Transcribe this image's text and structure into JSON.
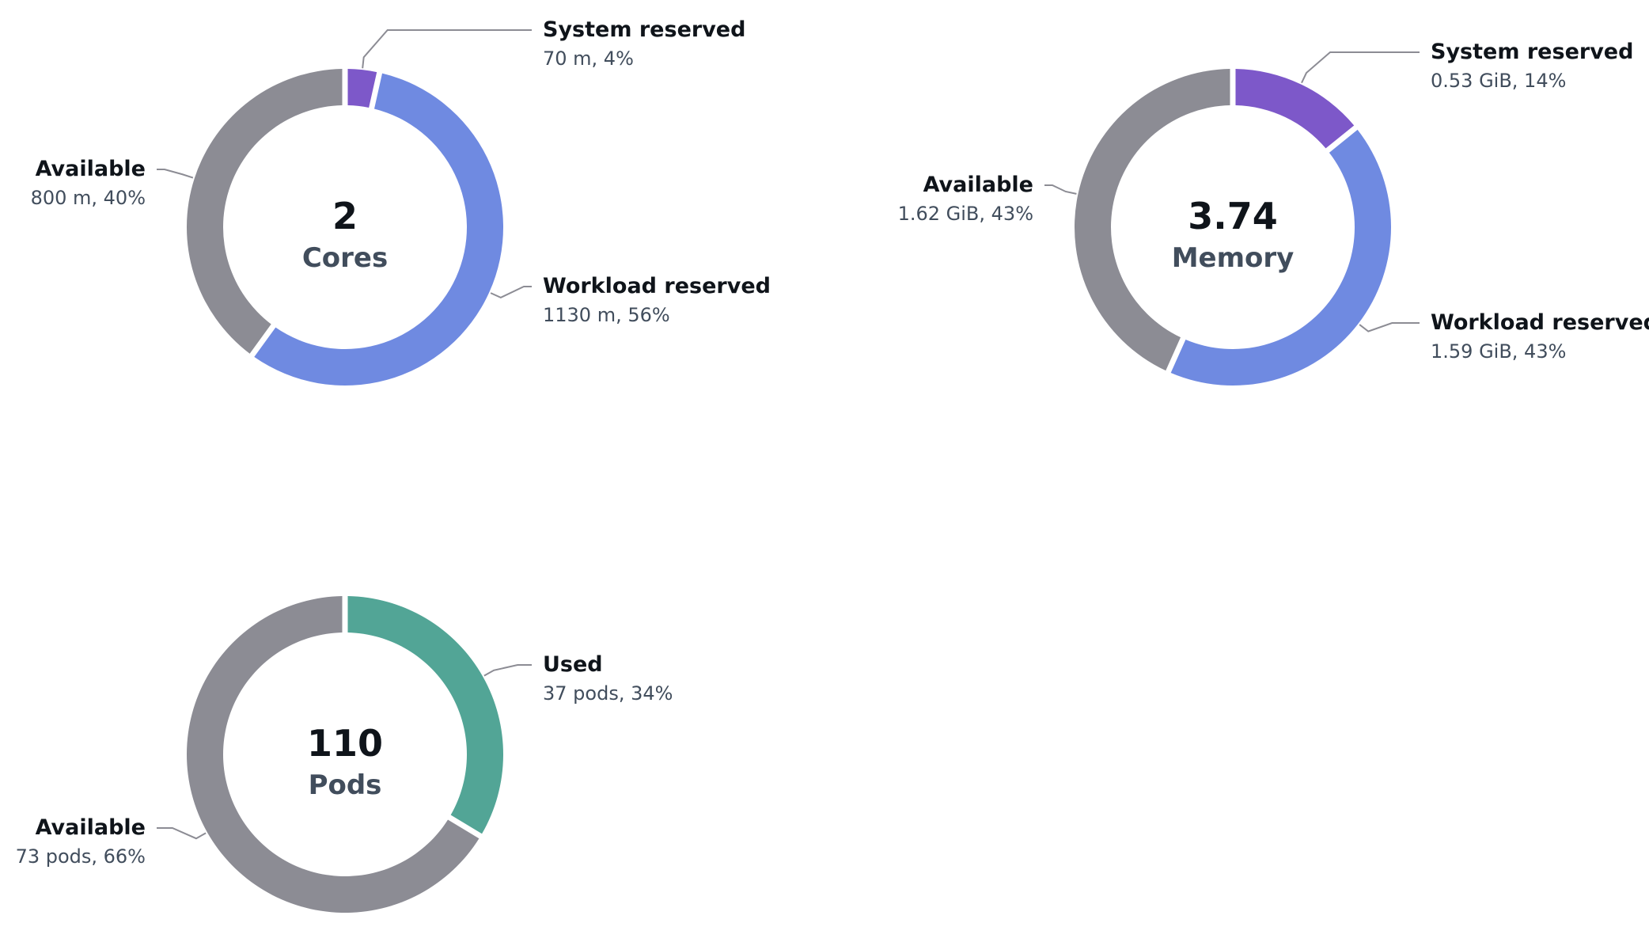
{
  "chart_data": [
    {
      "type": "pie",
      "variant": "donut",
      "center_value": "2",
      "center_label": "Cores",
      "slices": [
        {
          "name": "System reserved",
          "value": 70,
          "detail": "70 m, 4%",
          "color": "#7d58c9"
        },
        {
          "name": "Workload reserved",
          "value": 1130,
          "detail": "1130 m, 56%",
          "color": "#6f8ae1"
        },
        {
          "name": "Available",
          "value": 800,
          "detail": "800 m, 40%",
          "color": "#8c8c94"
        }
      ]
    },
    {
      "type": "pie",
      "variant": "donut",
      "center_value": "3.74",
      "center_label": "Memory",
      "slices": [
        {
          "name": "System reserved",
          "value": 0.53,
          "detail": "0.53 GiB, 14%",
          "color": "#7d58c9"
        },
        {
          "name": "Workload reserved",
          "value": 1.59,
          "detail": "1.59 GiB, 43%",
          "color": "#6f8ae1"
        },
        {
          "name": "Available",
          "value": 1.62,
          "detail": "1.62 GiB, 43%",
          "color": "#8c8c94"
        }
      ]
    },
    {
      "type": "pie",
      "variant": "donut",
      "center_value": "110",
      "center_label": "Pods",
      "slices": [
        {
          "name": "Used",
          "value": 37,
          "detail": "37 pods, 34%",
          "color": "#52a596"
        },
        {
          "name": "Available",
          "value": 73,
          "detail": "73 pods, 66%",
          "color": "#8c8c94"
        }
      ]
    }
  ]
}
